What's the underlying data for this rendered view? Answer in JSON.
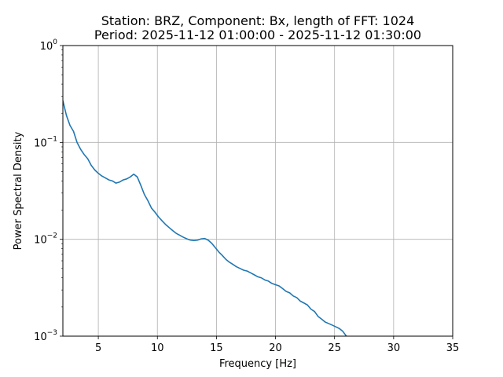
{
  "colors": {
    "series": "#1f77b4",
    "grid": "#b0b0b0",
    "axes": "#000000",
    "background": "#ffffff"
  },
  "chart_data": {
    "type": "line",
    "title_line1": "Station: BRZ, Component: Bx, length of FFT: 1024",
    "title_line2": "Period: 2025-11-12 01:00:00 - 2025-11-12 01:30:00",
    "xlabel": "Frequency [Hz]",
    "ylabel": "Power Spectral Density",
    "xlim": [
      2,
      35
    ],
    "ylim": [
      0.001,
      1
    ],
    "yscale": "log",
    "grid": true,
    "xticks": [
      {
        "value": 5,
        "label": "5"
      },
      {
        "value": 10,
        "label": "10"
      },
      {
        "value": 15,
        "label": "15"
      },
      {
        "value": 20,
        "label": "20"
      },
      {
        "value": 25,
        "label": "25"
      },
      {
        "value": 30,
        "label": "30"
      },
      {
        "value": 35,
        "label": "35"
      }
    ],
    "yticks": [
      {
        "value": 0.001,
        "base": "10",
        "exp": "−3"
      },
      {
        "value": 0.01,
        "base": "10",
        "exp": "−2"
      },
      {
        "value": 0.1,
        "base": "10",
        "exp": "−1"
      },
      {
        "value": 1,
        "base": "10",
        "exp": "0"
      }
    ],
    "series": [
      {
        "x": [
          2.0,
          2.3,
          2.6,
          2.9,
          3.2,
          3.5,
          3.8,
          4.1,
          4.4,
          4.7,
          5.0,
          5.3,
          5.6,
          5.9,
          6.2,
          6.5,
          6.8,
          7.1,
          7.4,
          7.7,
          8.0,
          8.3,
          8.6,
          8.9,
          9.2,
          9.5,
          9.8,
          10.1,
          10.4,
          10.7,
          11.0,
          11.3,
          11.6,
          11.9,
          12.2,
          12.5,
          12.8,
          13.1,
          13.4,
          13.7,
          14.0,
          14.3,
          14.6,
          14.9,
          15.2,
          15.5,
          15.8,
          16.1,
          16.4,
          16.7,
          17.0,
          17.3,
          17.6,
          17.9,
          18.2,
          18.5,
          18.8,
          19.1,
          19.4,
          19.7,
          20.0,
          20.3,
          20.6,
          20.9,
          21.2,
          21.5,
          21.8,
          22.1,
          22.4,
          22.7,
          23.0,
          23.3,
          23.6,
          23.9,
          24.2,
          24.5,
          24.8,
          25.1,
          25.4,
          25.7,
          26.0
        ],
        "y": [
          0.27,
          0.19,
          0.15,
          0.13,
          0.1,
          0.085,
          0.075,
          0.068,
          0.058,
          0.052,
          0.048,
          0.045,
          0.043,
          0.041,
          0.04,
          0.038,
          0.039,
          0.041,
          0.042,
          0.044,
          0.047,
          0.044,
          0.036,
          0.029,
          0.025,
          0.021,
          0.019,
          0.017,
          0.0155,
          0.0142,
          0.0132,
          0.0123,
          0.0115,
          0.011,
          0.0105,
          0.0101,
          0.0098,
          0.0097,
          0.0098,
          0.0101,
          0.0102,
          0.0098,
          0.0091,
          0.0082,
          0.0074,
          0.0068,
          0.0062,
          0.0058,
          0.0055,
          0.0052,
          0.005,
          0.0048,
          0.0047,
          0.0045,
          0.0043,
          0.0041,
          0.004,
          0.0038,
          0.0037,
          0.0035,
          0.0034,
          0.0033,
          0.0031,
          0.0029,
          0.0028,
          0.0026,
          0.0025,
          0.0023,
          0.0022,
          0.0021,
          0.0019,
          0.0018,
          0.0016,
          0.0015,
          0.0014,
          0.00135,
          0.0013,
          0.00125,
          0.0012,
          0.00112,
          0.001
        ]
      }
    ]
  }
}
